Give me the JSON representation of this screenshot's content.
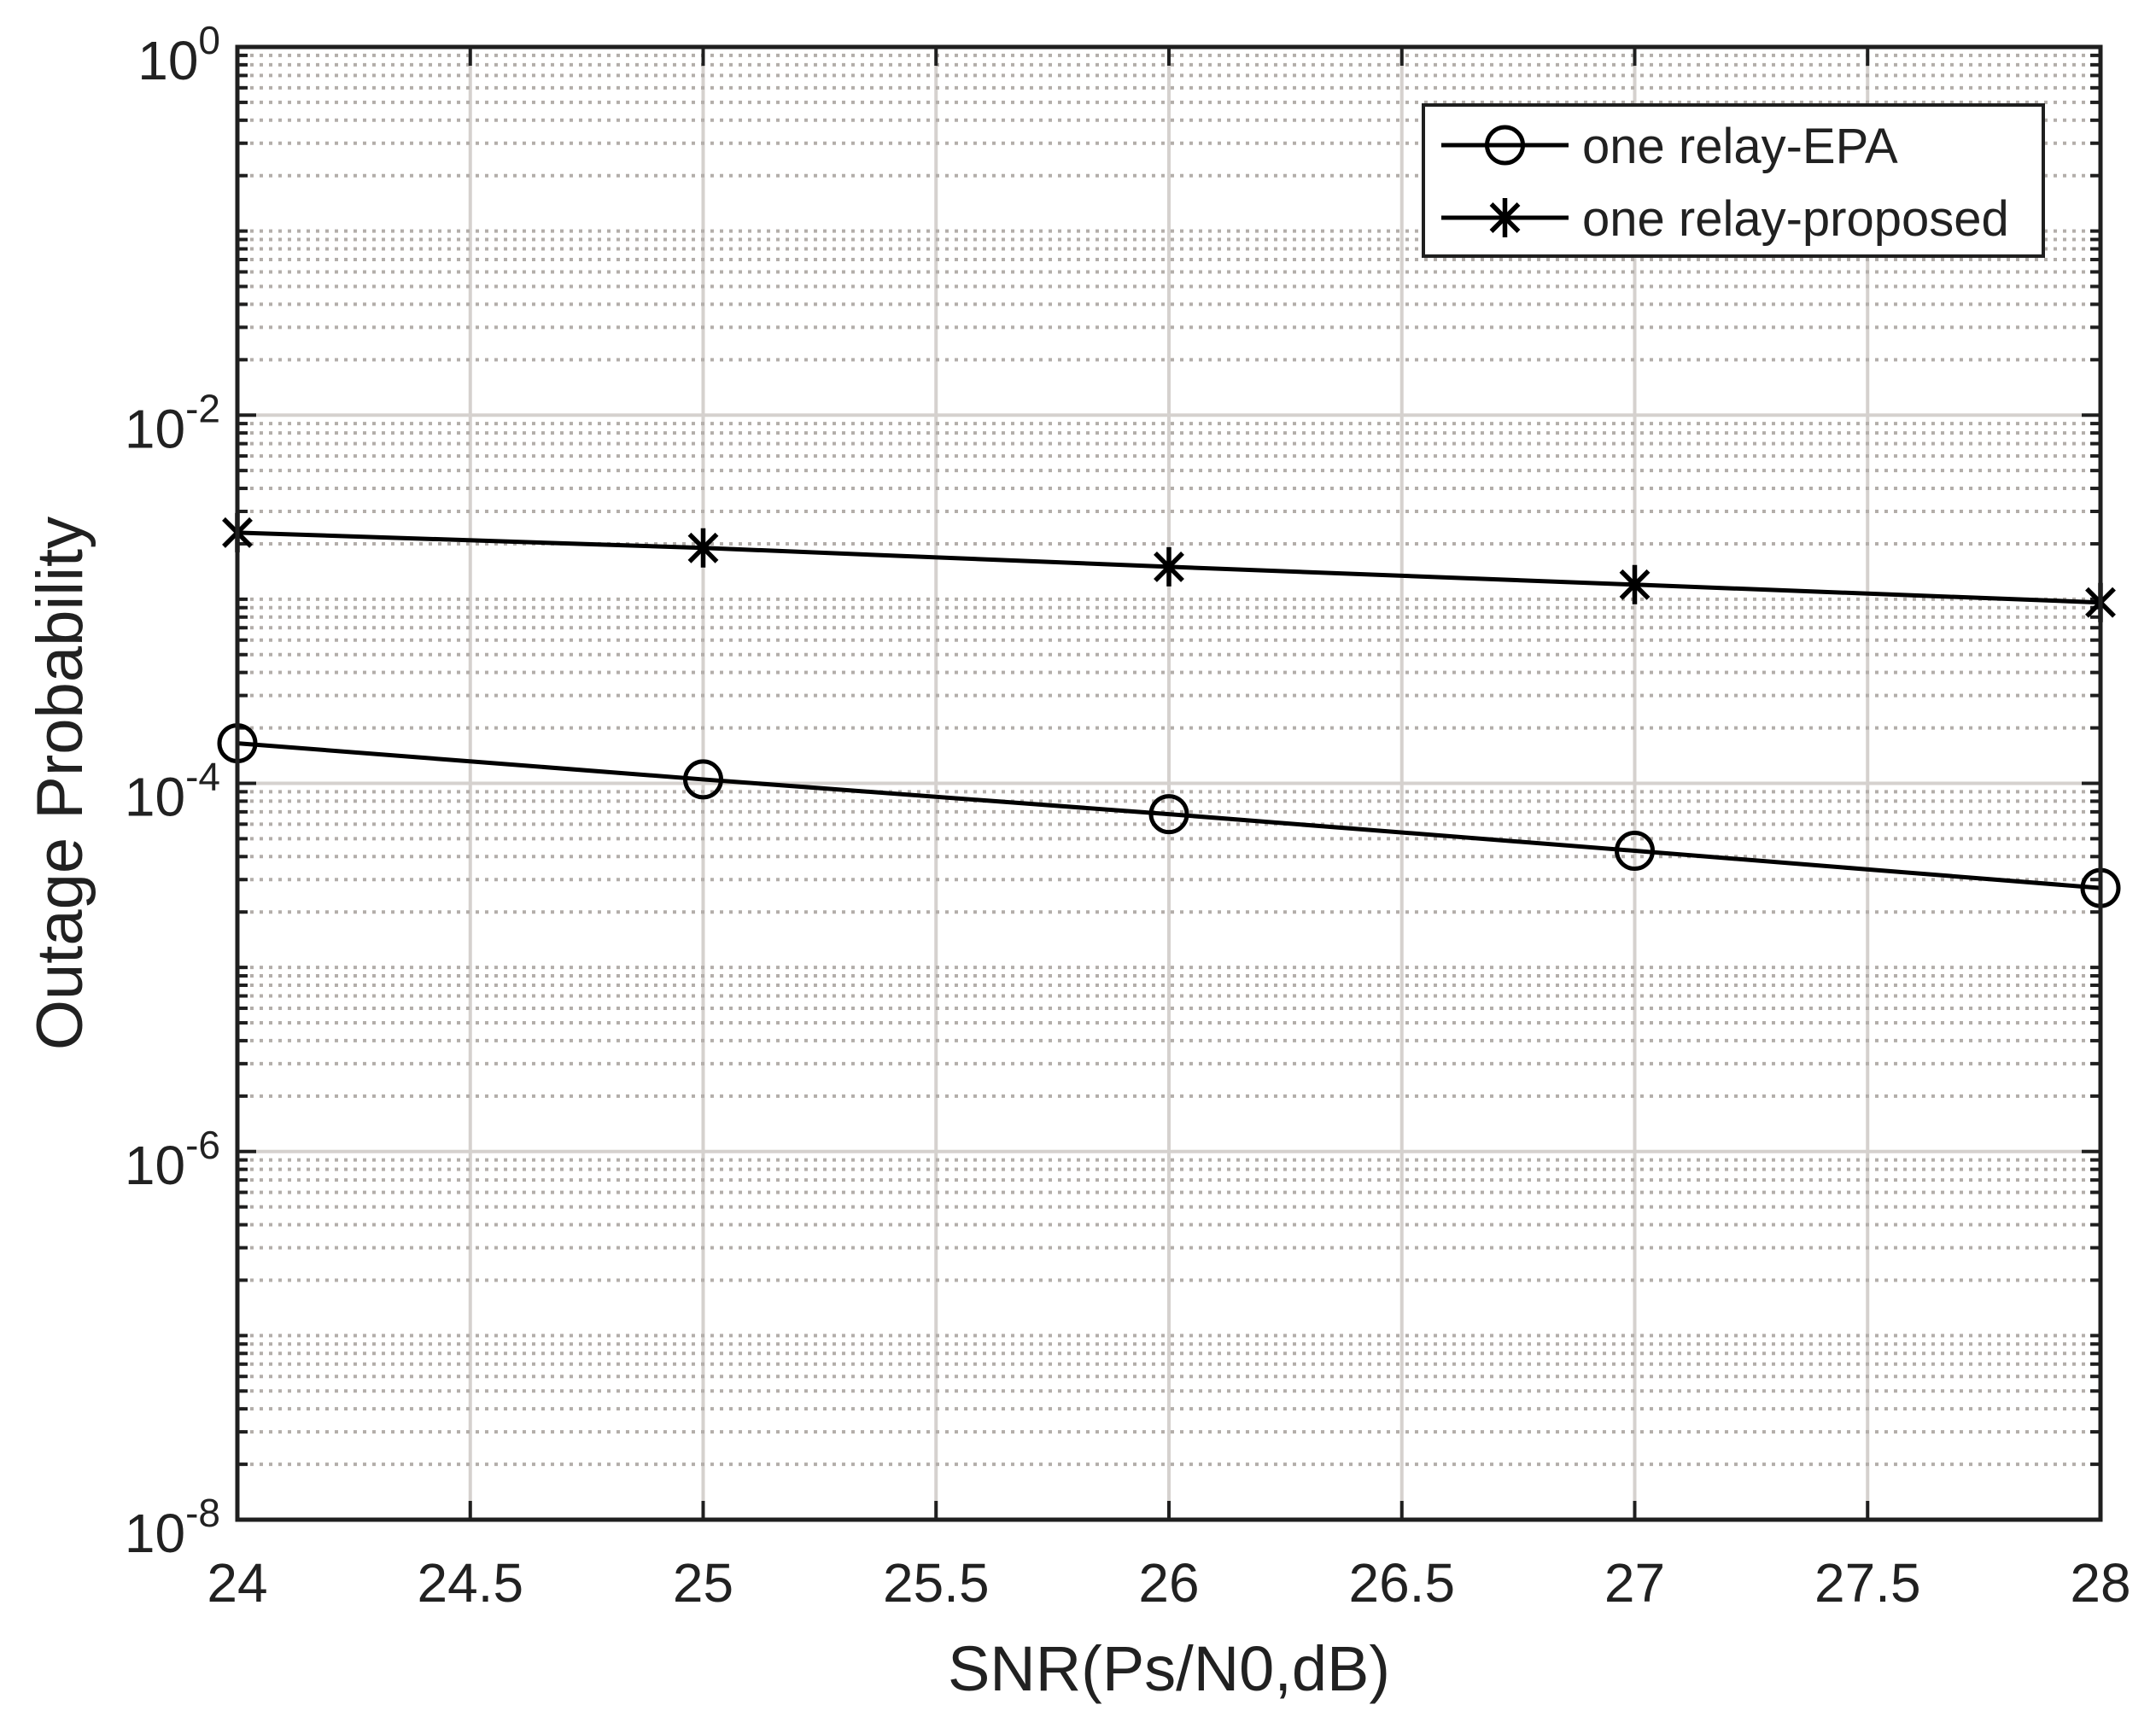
{
  "figure": {
    "background": "#ffffff",
    "text_color": "#212121",
    "axis_color": "#1f1f1f",
    "major_grid_color": "#d5d1ce",
    "minor_grid_color": "#b3aeaa",
    "series_color": "#000000",
    "legend_background": "#ffffff"
  },
  "chart_data": {
    "type": "line",
    "title": "",
    "xlabel": "SNR(Ps/N0,dB)",
    "ylabel": "Outage Probability",
    "yscale": "log",
    "xlim": [
      24,
      28
    ],
    "ylim": [
      1e-08,
      1
    ],
    "xticks": [
      24,
      24.5,
      25,
      25.5,
      26,
      26.5,
      27,
      27.5,
      28
    ],
    "xtick_labels": [
      "24",
      "24.5",
      "25",
      "25.5",
      "26",
      "26.5",
      "27",
      "27.5",
      "28"
    ],
    "ytick_exponents": [
      0,
      -2,
      -4,
      -6,
      -8
    ],
    "grid": true,
    "minor_grid": true,
    "legend_position": "upper right",
    "x": [
      24,
      25,
      26,
      27,
      28
    ],
    "series": [
      {
        "name": "one relay-EPA",
        "marker": "circle",
        "values": [
          0.000165,
          0.000105,
          6.8e-05,
          4.3e-05,
          2.7e-05
        ]
      },
      {
        "name": "one relay-proposed",
        "marker": "asterisk",
        "values": [
          0.0023,
          0.0019,
          0.0015,
          0.0012,
          0.00096
        ]
      }
    ]
  }
}
